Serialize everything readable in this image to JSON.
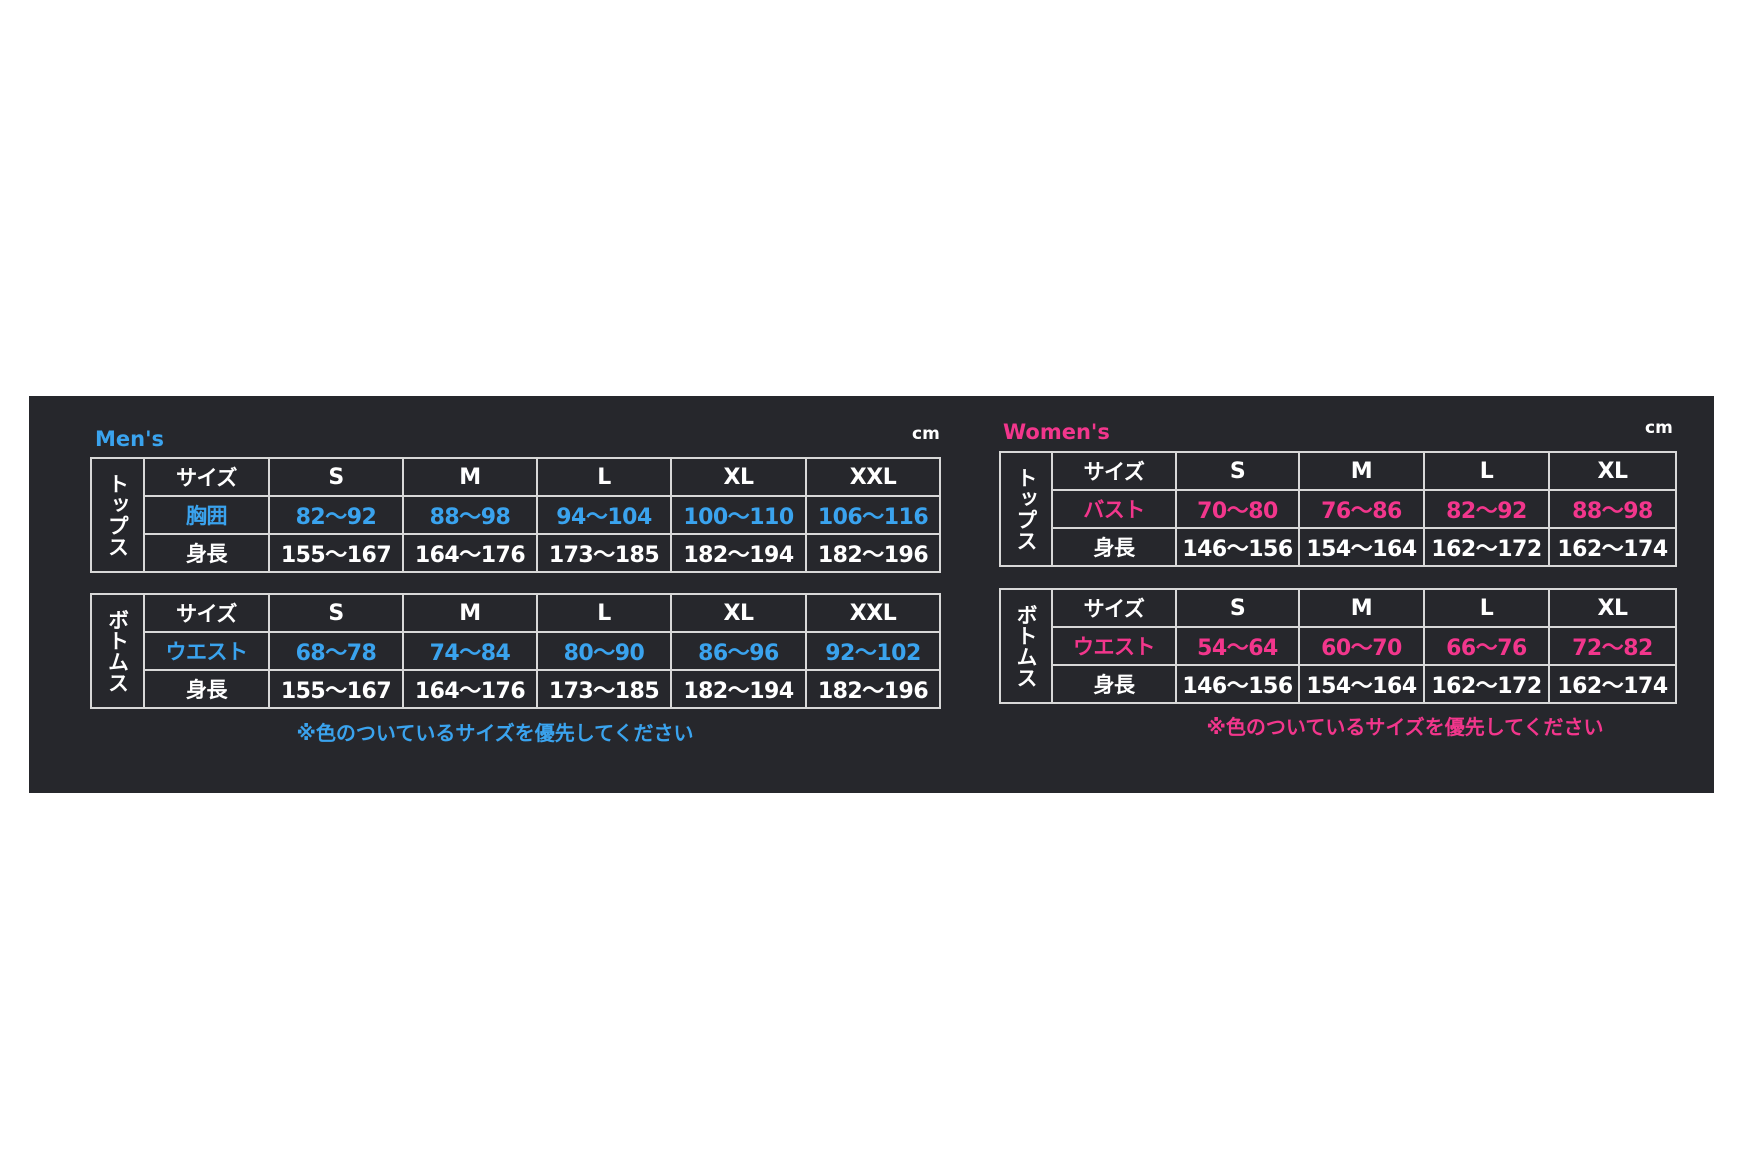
{
  "colors": {
    "mens_accent": "#3aa3ee",
    "womens_accent": "#f2368c",
    "panel": "#26272c",
    "grid": "#d8d8d8"
  },
  "unit": "cm",
  "mens": {
    "title": "Men's",
    "note": "※色のついているサイズを優先してください",
    "tables": [
      {
        "section": "トップス",
        "header_label": "サイズ",
        "sizes": [
          "S",
          "M",
          "L",
          "XL",
          "XXL"
        ],
        "rows": [
          {
            "label": "胸囲",
            "highlight": true,
            "values": [
              "82〜92",
              "88〜98",
              "94〜104",
              "100〜110",
              "106〜116"
            ]
          },
          {
            "label": "身長",
            "highlight": false,
            "values": [
              "155〜167",
              "164〜176",
              "173〜185",
              "182〜194",
              "182〜196"
            ]
          }
        ]
      },
      {
        "section": "ボトムス",
        "header_label": "サイズ",
        "sizes": [
          "S",
          "M",
          "L",
          "XL",
          "XXL"
        ],
        "rows": [
          {
            "label": "ウエスト",
            "highlight": true,
            "values": [
              "68〜78",
              "74〜84",
              "80〜90",
              "86〜96",
              "92〜102"
            ]
          },
          {
            "label": "身長",
            "highlight": false,
            "values": [
              "155〜167",
              "164〜176",
              "173〜185",
              "182〜194",
              "182〜196"
            ]
          }
        ]
      }
    ]
  },
  "womens": {
    "title": "Women's",
    "note": "※色のついているサイズを優先してください",
    "tables": [
      {
        "section": "トップス",
        "header_label": "サイズ",
        "sizes": [
          "S",
          "M",
          "L",
          "XL"
        ],
        "rows": [
          {
            "label": "バスト",
            "highlight": true,
            "values": [
              "70〜80",
              "76〜86",
              "82〜92",
              "88〜98"
            ]
          },
          {
            "label": "身長",
            "highlight": false,
            "values": [
              "146〜156",
              "154〜164",
              "162〜172",
              "162〜174"
            ]
          }
        ]
      },
      {
        "section": "ボトムス",
        "header_label": "サイズ",
        "sizes": [
          "S",
          "M",
          "L",
          "XL"
        ],
        "rows": [
          {
            "label": "ウエスト",
            "highlight": true,
            "values": [
              "54〜64",
              "60〜70",
              "66〜76",
              "72〜82"
            ]
          },
          {
            "label": "身長",
            "highlight": false,
            "values": [
              "146〜156",
              "154〜164",
              "162〜172",
              "162〜174"
            ]
          }
        ]
      }
    ]
  }
}
